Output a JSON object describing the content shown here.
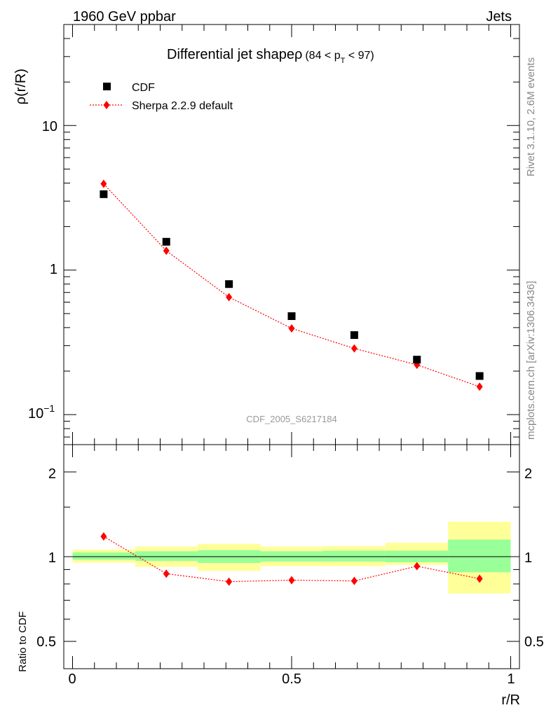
{
  "header": {
    "left": "1960 GeV ppbar",
    "right": "Jets"
  },
  "side_labels": {
    "rivet": "Rivet 3.1.10,  2.6M events",
    "source": "mcplots.cern.ch [arXiv:1306.3436]"
  },
  "plot": {
    "title_main": "Differential jet shapeρ",
    "title_range_open": "(84 < p",
    "title_range_sub": "T",
    "title_range_close": " < 97)",
    "watermark": "CDF_2005_S6217184",
    "ylabel_main": "ρ(r/R)",
    "ylabel_ratio": "Ratio to CDF",
    "xlabel": "r/R",
    "legend": {
      "data_label": "CDF",
      "mc_label": "Sherpa 2.2.9 default"
    },
    "main_ticks": [
      "10",
      "1",
      "10"
    ],
    "main_tick_exponent": "−1",
    "ratio_ticks": [
      "2",
      "1",
      "0.5"
    ],
    "x_ticks": [
      "0",
      "0.5",
      "1"
    ]
  },
  "colors": {
    "data": "#000000",
    "mc": "#ff0000",
    "band_outer": "#ffff99",
    "band_inner": "#99ff99"
  },
  "chart_data": {
    "type": "scatter",
    "title": "Differential jet shapeρ (84 < p_T < 97)",
    "xlabel": "r/R",
    "ylabel": "ρ(r/R)",
    "yscale": "log",
    "xlim": [
      -0.02,
      1.02
    ],
    "ylim": [
      0.062,
      50
    ],
    "bin_edges": [
      0.0,
      0.143,
      0.286,
      0.429,
      0.571,
      0.714,
      0.857,
      1.0
    ],
    "x": [
      0.071,
      0.214,
      0.357,
      0.5,
      0.643,
      0.786,
      0.929
    ],
    "series": [
      {
        "name": "CDF",
        "marker": "square",
        "values": [
          3.35,
          1.57,
          0.8,
          0.48,
          0.355,
          0.24,
          0.185
        ]
      },
      {
        "name": "Sherpa 2.2.9 default",
        "marker": "diamond",
        "line": "dotted",
        "values": [
          3.95,
          1.36,
          0.65,
          0.395,
          0.287,
          0.221,
          0.156
        ]
      }
    ],
    "ratio": {
      "ylabel": "Ratio to CDF",
      "ylim": [
        0.4,
        2.5
      ],
      "yscale": "log",
      "values": [
        1.18,
        0.87,
        0.815,
        0.825,
        0.82,
        0.925,
        0.835
      ],
      "band_outer": [
        [
          0.952,
          1.06
        ],
        [
          0.92,
          1.085
        ],
        [
          0.89,
          1.11
        ],
        [
          0.925,
          1.085
        ],
        [
          0.925,
          1.09
        ],
        [
          0.935,
          1.12
        ],
        [
          0.74,
          1.33
        ]
      ],
      "band_inner": [
        [
          0.975,
          1.035
        ],
        [
          0.965,
          1.045
        ],
        [
          0.95,
          1.055
        ],
        [
          0.96,
          1.045
        ],
        [
          0.96,
          1.05
        ],
        [
          0.955,
          1.05
        ],
        [
          0.88,
          1.15
        ]
      ]
    }
  }
}
